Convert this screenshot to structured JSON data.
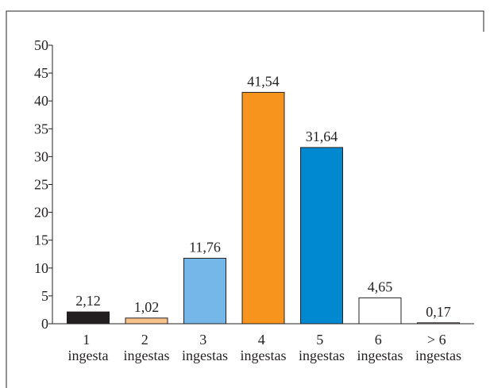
{
  "chart_data": {
    "type": "bar",
    "categories": [
      "1 ingesta",
      "2 ingestas",
      "3 ingestas",
      "4 ingestas",
      "5 ingestas",
      "6 ingestas",
      "> 6 ingestas"
    ],
    "values": [
      2.12,
      1.02,
      11.76,
      41.54,
      31.64,
      4.65,
      0.17
    ],
    "value_labels": [
      "2,12",
      "1,02",
      "11,76",
      "41,54",
      "31,64",
      "4,65",
      "0,17"
    ],
    "colors": [
      "#231f20",
      "#f8c28d",
      "#74b7e8",
      "#f7941d",
      "#0089d0",
      "#ffffff",
      "#ffffff"
    ],
    "ylim": [
      0,
      50
    ],
    "yticks": [
      0,
      5,
      10,
      15,
      20,
      25,
      30,
      35,
      40,
      45,
      50
    ]
  }
}
